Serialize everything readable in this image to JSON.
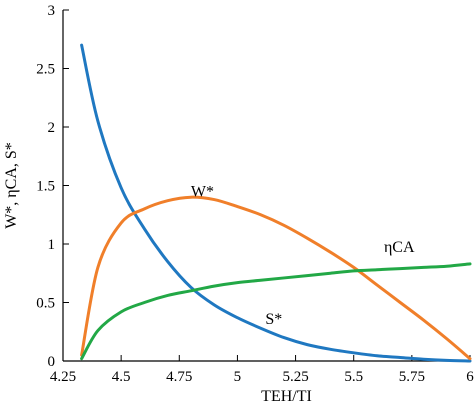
{
  "chart_data": {
    "type": "line",
    "xlabel": "TEH/TI",
    "ylabel": "W*, ηCA, S*",
    "xlim": [
      4.25,
      6
    ],
    "ylim": [
      0,
      3
    ],
    "x_ticks": [
      "4.25",
      "4.5",
      "4.75",
      "5",
      "5.25",
      "5.5",
      "5.75",
      "6"
    ],
    "y_ticks": [
      "0",
      "0.5",
      "1",
      "1.5",
      "2",
      "2.5",
      "3"
    ],
    "grid": false,
    "legend": "none",
    "series": [
      {
        "name": "S*",
        "color": "#1f78c1",
        "x": [
          4.33,
          4.4,
          4.5,
          4.6,
          4.7,
          4.8,
          4.9,
          5.0,
          5.1,
          5.2,
          5.3,
          5.4,
          5.5,
          5.6,
          5.7,
          5.8,
          5.9,
          6.0
        ],
        "y": [
          2.7,
          2.05,
          1.48,
          1.13,
          0.85,
          0.63,
          0.48,
          0.37,
          0.28,
          0.2,
          0.14,
          0.1,
          0.07,
          0.045,
          0.03,
          0.015,
          0.005,
          0.0
        ]
      },
      {
        "name": "W*",
        "color": "#f07f2a",
        "x": [
          4.33,
          4.4,
          4.5,
          4.6,
          4.7,
          4.8,
          4.9,
          5.0,
          5.1,
          5.2,
          5.3,
          5.4,
          5.5,
          5.6,
          5.7,
          5.8,
          5.9,
          6.0
        ],
        "y": [
          0.05,
          0.8,
          1.18,
          1.3,
          1.37,
          1.4,
          1.38,
          1.32,
          1.25,
          1.16,
          1.05,
          0.93,
          0.8,
          0.65,
          0.5,
          0.35,
          0.19,
          0.02
        ]
      },
      {
        "name": "ηCA",
        "color": "#22a846",
        "x": [
          4.33,
          4.4,
          4.5,
          4.6,
          4.7,
          4.8,
          4.9,
          5.0,
          5.1,
          5.2,
          5.3,
          5.4,
          5.5,
          5.6,
          5.7,
          5.8,
          5.9,
          6.0
        ],
        "y": [
          0.02,
          0.26,
          0.42,
          0.5,
          0.56,
          0.6,
          0.64,
          0.67,
          0.69,
          0.71,
          0.73,
          0.75,
          0.77,
          0.78,
          0.79,
          0.8,
          0.81,
          0.83
        ]
      }
    ],
    "annotations": [
      {
        "text": "W*",
        "series": "W*"
      },
      {
        "text": "ηCA",
        "series": "ηCA"
      },
      {
        "text": "S*",
        "series": "S*"
      }
    ]
  }
}
